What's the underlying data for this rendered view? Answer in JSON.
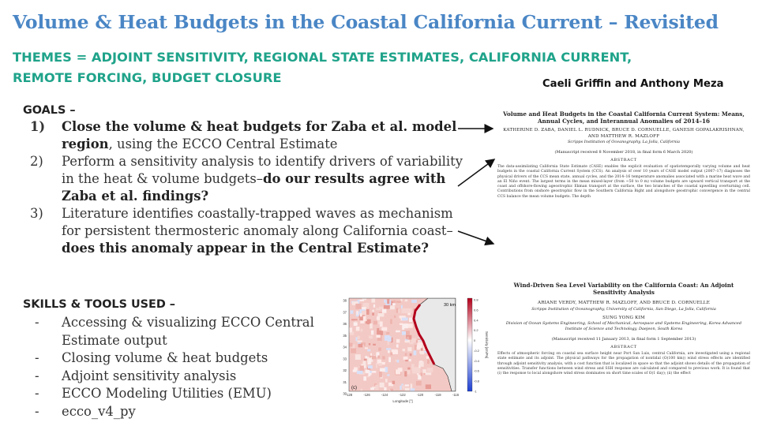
{
  "slide": {
    "title": "Volume & Heat Budgets in the Coastal California Current – Revisited",
    "themes": "THEMES = ADJOINT SENSITIVITY, REGIONAL STATE ESTIMATES, CALIFORNIA CURRENT, REMOTE FORCING, BUDGET CLOSURE",
    "authors": "Caeli Griffin and Anthony Meza"
  },
  "goals": {
    "heading": "GOALS –",
    "items": [
      {
        "num": "1)",
        "bold1": "Close the volume & heat budgets for Zaba et al. model region",
        "text": ", using the ECCO Central Estimate",
        "bold2": ""
      },
      {
        "num": "2)",
        "bold1": "",
        "text": "Perform a sensitivity analysis to identify drivers of variability in the heat & volume budgets–",
        "bold2": "do our results agree with Zaba et al. findings?"
      },
      {
        "num": "3)",
        "bold1": "",
        "text": "Literature identifies coastally-trapped waves as mechanism for persistent thermosteric anomaly along California coast–",
        "bold2": "does this anomaly appear in the Central Estimate?"
      }
    ]
  },
  "skills": {
    "heading": "SKILLS & TOOLS USED –",
    "items": [
      "Accessing & visualizing ECCO Central Estimate output",
      "Closing volume & heat budgets",
      "Adjoint sensitivity analysis",
      "ECCO Modeling Utilities (EMU)",
      "ecco_v4_py"
    ]
  },
  "paper1": {
    "title": "Volume and Heat Budgets in the Coastal California Current System: Means, Annual Cycles, and Interannual Anomalies of 2014–16",
    "authors": "KATHERINE D. ZABA, DANIEL L. RUDNICK, BRUCE D. CORNUELLE, GANESH GOPALAKRISHNAN, AND MATTHEW R. MAZLOFF",
    "affiliation": "Scripps Institution of Oceanography, La Jolla, California",
    "received": "(Manuscript received 8 November 2018, in final form 6 March 2020)",
    "abstract_heading": "ABSTRACT",
    "abstract": "The data-assimilating California State Estimate (CASE) enables the explicit evaluation of spatiotemporally varying volume and heat budgets in the coastal California Current System (CCS). An analysis of over 10 years of CASE model output (2007–17) diagnoses the physical drivers of the CCS mean state, annual cycles, and the 2014–16 temperature anomalies associated with a marine heat wave and an El Niño event. The largest terms in the mean mixed-layer (from ~50 to 0 m) volume budgets are upward vertical transport at the coast and offshore-flowing ageostrophic Ekman transport at the surface, the two branches of the coastal upwelling overturning cell. Contributions from onshore geostrophic flow in the Southern California Bight and alongshore geostrophic convergence in the central CCS balance the mean volume budgets. The depth"
  },
  "paper2": {
    "title": "Wind-Driven Sea Level Variability on the California Coast: An Adjoint Sensitivity Analysis",
    "authors": "ARIANE VERDY, MATTHEW R. MAZLOFF, AND BRUCE D. CORNUELLE",
    "affiliation1": "Scripps Institution of Oceanography, University of California, San Diego, La Jolla, California",
    "author2": "SUNG YONG KIM",
    "affiliation2": "Division of Ocean Systems Engineering, School of Mechanical, Aerospace and Systems Engineering, Korea Advanced Institute of Science and Technology, Daejeon, South Korea",
    "received": "(Manuscript received 11 January 2013, in final form 1 September 2013)",
    "abstract_heading": "ABSTRACT",
    "abstract": "Effects of atmospheric forcing on coastal sea surface height near Port San Luis, central California, are investigated using a regional state estimate and its adjoint. The physical pathways for the propagation of nontidal (O(100 km)) wind stress effects are identified through adjoint sensitivity analysis, with a cost function that is localized in space so that the adjoint shows details of the propagation of sensitivities. Transfer functions between wind stress and SSH response are calculated and compared to previous work. It is found that (i) the response to local alongshore wind stress dominates on short time scales of O(1 day); (ii) the effect"
  },
  "map": {
    "panel_label": "(c)",
    "scale_label": "30 km",
    "xlabel": "Longitude [°]",
    "ylabel": "Sensitivity [cm/Pa]",
    "x_ticks": [
      "-128",
      "-126",
      "-124",
      "-122",
      "-120",
      "-118",
      "-116"
    ],
    "y_ticks": [
      "38",
      "37",
      "36",
      "35",
      "34",
      "33",
      "32",
      "31",
      "30"
    ],
    "cbar_ticks": [
      "0.8",
      "0.6",
      "0.4",
      "0.2",
      "0",
      "-0.2",
      "-0.4",
      "-0.6",
      "-0.8",
      "-1"
    ],
    "colors": {
      "positive": "#c8102e",
      "negative": "#2b50c8",
      "land": "#e8e8e8"
    }
  }
}
